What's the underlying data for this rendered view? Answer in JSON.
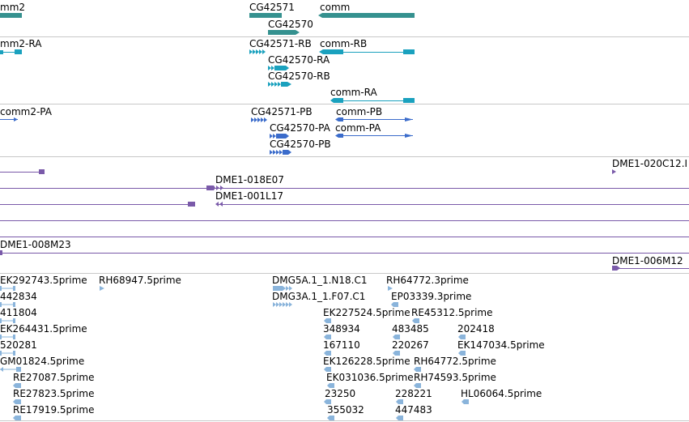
{
  "colors": {
    "gene": "#35918f",
    "transcript": "#1aa1be",
    "protein": "#3b6ccb",
    "clone": "#7a5aa9",
    "est": "#8ab4db",
    "separator": "#c8c8c8"
  },
  "tracks": {
    "genes": {
      "labels": [
        "mm2",
        "CG42571",
        "comm",
        "CG42570"
      ]
    },
    "transcripts": {
      "labels": [
        "mm2-RA",
        "CG42571-RB",
        "comm-RB",
        "CG42570-RA",
        "CG42570-RB",
        "comm-RA"
      ]
    },
    "proteins": {
      "labels": [
        "comm2-PA",
        "CG42571-PB",
        "comm-PB",
        "CG42570-PA",
        "comm-PA",
        "CG42570-PB"
      ]
    },
    "clones": {
      "labels": [
        "DME1-020C12.I",
        "DME1-018E07",
        "DME1-001L17",
        "DME1-008M23",
        "DME1-006M12"
      ]
    },
    "ests": {
      "labels": [
        "EK292743.5prime",
        "RH68947.5prime",
        "DMG5A.1_1.N18.C1",
        "RH64772.3prime",
        "442834",
        "DMG3A.1_1.F07.C1",
        "EP03339.3prime",
        "411804",
        "EK227524.5prime",
        "RE45312.5prime",
        "EK264431.5prime",
        "348934",
        "483485",
        "202418",
        "520281",
        "167110",
        "220267",
        "EK147034.5prime",
        "GM01824.5prime",
        "EK126228.5prime",
        "RH64772.5prime",
        "RE27087.5prime",
        "EK031036.5prime",
        "RH74593.5prime",
        "RE27823.5prime",
        "23250",
        "228221",
        "HL06064.5prime",
        "RE17919.5prime",
        "355032",
        "447483"
      ]
    }
  }
}
